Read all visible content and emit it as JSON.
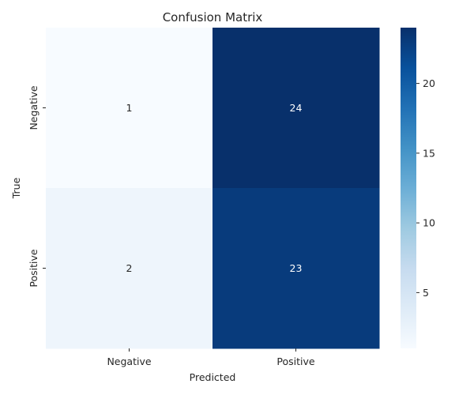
{
  "chart_data": {
    "type": "heatmap",
    "title": "Confusion Matrix",
    "xlabel": "Predicted",
    "ylabel": "True",
    "x_categories": [
      "Negative",
      "Positive"
    ],
    "y_categories": [
      "Negative",
      "Positive"
    ],
    "values": [
      [
        1,
        24
      ],
      [
        2,
        23
      ]
    ],
    "colormap": "Blues",
    "colorbar": {
      "range": [
        1,
        24
      ],
      "ticks": [
        5,
        10,
        15,
        20
      ]
    },
    "annotations": true,
    "grid": false
  }
}
